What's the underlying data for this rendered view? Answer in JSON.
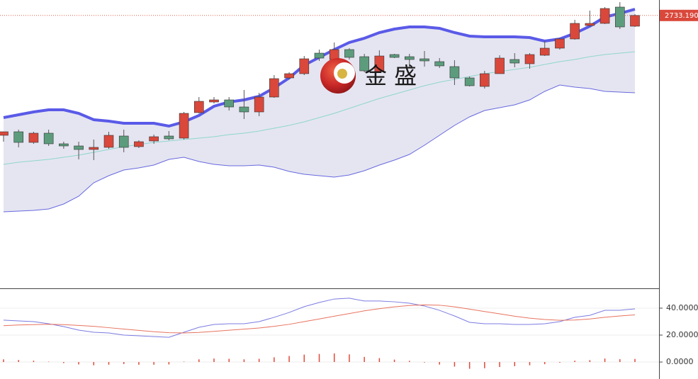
{
  "chart_data": [
    {
      "type": "candlestick",
      "watermark": "金 盛",
      "last_price": {
        "value": 2733.19,
        "label": "2733.190"
      },
      "ylim": [
        2348,
        2755
      ],
      "up_color": "#d9483b",
      "down_color": "#5c9c7d",
      "open": [
        2564,
        2569,
        2554,
        2567,
        2552,
        2549,
        2544,
        2547,
        2563,
        2548,
        2556,
        2563,
        2560,
        2596,
        2611,
        2614,
        2604,
        2597,
        2618,
        2645,
        2651,
        2680,
        2671,
        2685,
        2675,
        2654,
        2678,
        2675,
        2672,
        2668,
        2661,
        2645,
        2633,
        2651,
        2671,
        2665,
        2677,
        2687,
        2700,
        2719,
        2722,
        2745,
        2718
      ],
      "high": [
        2569,
        2572,
        2569,
        2572,
        2555,
        2555,
        2558,
        2569,
        2572,
        2557,
        2565,
        2570,
        2597,
        2618,
        2618,
        2618,
        2628,
        2624,
        2649,
        2653,
        2676,
        2685,
        2695,
        2687,
        2679,
        2684,
        2679,
        2679,
        2683,
        2673,
        2670,
        2647,
        2655,
        2677,
        2680,
        2680,
        2697,
        2702,
        2727,
        2740,
        2745,
        2752,
        2735
      ],
      "low": [
        2555,
        2547,
        2552,
        2549,
        2545,
        2530,
        2529,
        2545,
        2540,
        2546,
        2552,
        2557,
        2558,
        2595,
        2609,
        2599,
        2587,
        2591,
        2617,
        2643,
        2649,
        2669,
        2669,
        2671,
        2653,
        2652,
        2673,
        2660,
        2661,
        2659,
        2635,
        2633,
        2630,
        2651,
        2660,
        2658,
        2676,
        2685,
        2699,
        2717,
        2721,
        2714,
        2717
      ],
      "close": [
        2569,
        2554,
        2567,
        2552,
        2549,
        2544,
        2547,
        2564,
        2547,
        2555,
        2562,
        2559,
        2595,
        2612,
        2614,
        2604,
        2597,
        2618,
        2644,
        2651,
        2672,
        2673,
        2685,
        2674,
        2655,
        2676,
        2674,
        2671,
        2669,
        2662,
        2645,
        2634,
        2651,
        2673,
        2666,
        2678,
        2687,
        2700,
        2722,
        2722,
        2743,
        2717,
        2733.19
      ],
      "bands": [
        {
          "color": "#5a5ae8",
          "values": [
            2589,
            2593,
            2597,
            2600,
            2600,
            2595,
            2586,
            2584,
            2581,
            2581,
            2581,
            2577,
            2583,
            2592,
            2605,
            2611,
            2614,
            2619,
            2631,
            2645,
            2663,
            2674,
            2685,
            2695,
            2701,
            2709,
            2714,
            2717,
            2717,
            2715,
            2709,
            2704,
            2703,
            2703,
            2703,
            2702,
            2697,
            2700,
            2708,
            2718,
            2731,
            2736,
            2742
          ]
        },
        {
          "color": "#8fd6cc",
          "values": [
            2523,
            2526,
            2528,
            2530,
            2533,
            2536,
            2540,
            2544,
            2548,
            2551,
            2554,
            2556,
            2558,
            2560,
            2562,
            2565,
            2567,
            2570,
            2574,
            2578,
            2583,
            2589,
            2595,
            2602,
            2609,
            2616,
            2622,
            2628,
            2634,
            2639,
            2643,
            2647,
            2651,
            2654,
            2657,
            2660,
            2664,
            2668,
            2671,
            2675,
            2678,
            2680,
            2682
          ]
        },
        {
          "color": "#6868e0",
          "values": [
            2456,
            2457,
            2458,
            2460,
            2467,
            2478,
            2497,
            2507,
            2515,
            2518,
            2522,
            2530,
            2533,
            2527,
            2523,
            2521,
            2521,
            2522,
            2519,
            2513,
            2509,
            2507,
            2505,
            2508,
            2514,
            2522,
            2529,
            2537,
            2550,
            2564,
            2578,
            2590,
            2599,
            2603,
            2607,
            2614,
            2626,
            2635,
            2632,
            2630,
            2626,
            2625,
            2624
          ]
        }
      ],
      "band_fill": "#e5e5f1"
    },
    {
      "type": "indicator",
      "ylim": [
        -12.6,
        54.2
      ],
      "yticks": [
        {
          "value": 40,
          "label": "40.0000"
        },
        {
          "value": 20,
          "label": "20.0000"
        },
        {
          "value": 0,
          "label": "0.0000"
        }
      ],
      "series": [
        {
          "type": "line",
          "color": "#7b7be2",
          "values": [
            31.1,
            30.5,
            30.0,
            28.4,
            26.3,
            23.7,
            22.1,
            21.6,
            20.0,
            19.5,
            18.9,
            18.4,
            22.1,
            25.8,
            27.9,
            28.4,
            28.4,
            30.0,
            33.2,
            36.8,
            41.1,
            44.2,
            46.8,
            47.4,
            45.3,
            45.3,
            44.7,
            43.7,
            41.6,
            38.4,
            34.2,
            29.5,
            28.4,
            28.4,
            27.9,
            27.9,
            28.4,
            30.0,
            33.2,
            34.7,
            38.4,
            38.4,
            39.5
          ]
        },
        {
          "type": "line",
          "color": "#e8735f",
          "values": [
            27.0,
            27.5,
            27.8,
            28.0,
            27.8,
            27.2,
            26.5,
            25.5,
            24.5,
            23.5,
            22.5,
            21.8,
            21.6,
            22.0,
            22.8,
            23.6,
            24.4,
            25.3,
            26.5,
            28.0,
            30.0,
            32.0,
            34.0,
            36.0,
            38.0,
            39.6,
            41.0,
            42.0,
            42.4,
            42.2,
            41.0,
            39.3,
            37.5,
            35.8,
            34.0,
            32.6,
            31.6,
            31.0,
            31.2,
            32.0,
            33.2,
            34.2,
            35.0
          ]
        },
        {
          "type": "bar",
          "color": "#e04a3a",
          "values": [
            2,
            1.5,
            1,
            0.3,
            -0.8,
            -1.8,
            -2.4,
            -2,
            -1.5,
            -2,
            -2,
            -1.8,
            0.3,
            2,
            2.6,
            2.4,
            2,
            2.4,
            3.5,
            4.5,
            5.5,
            6,
            6.4,
            5.7,
            3.8,
            2.9,
            1.8,
            0.9,
            -0.4,
            -1.9,
            -3.4,
            -5,
            -4.6,
            -3.7,
            -3.1,
            -2.4,
            -1.6,
            -0.5,
            1,
            1.4,
            2.6,
            2.1,
            2.3
          ]
        }
      ]
    }
  ]
}
